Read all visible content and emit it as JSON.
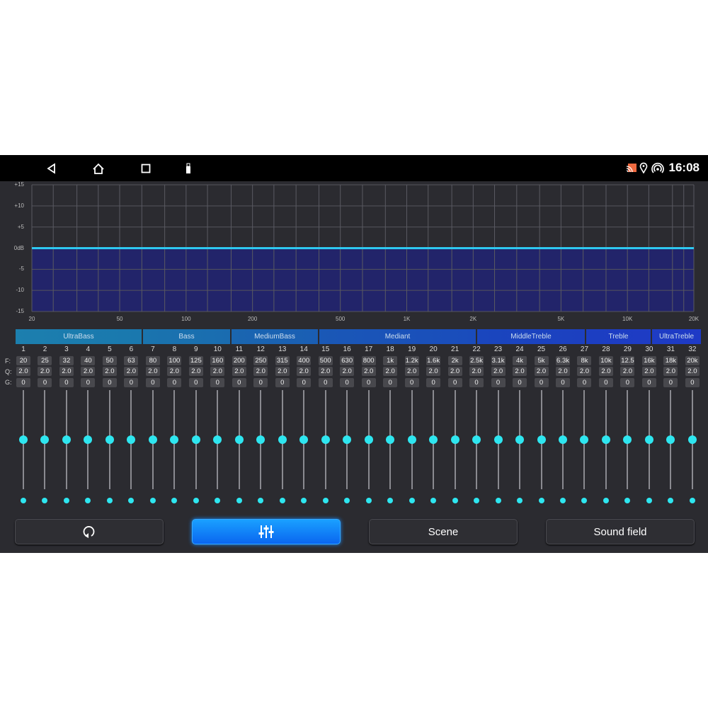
{
  "status_bar": {
    "time": "16:08",
    "icons": [
      "back-icon",
      "home-icon",
      "recents-icon",
      "usb-icon",
      "cast-icon",
      "location-icon",
      "hotspot-icon"
    ]
  },
  "graph": {
    "y_labels": [
      "+15",
      "+10",
      "+5",
      "0dB",
      "-5",
      "-10",
      "-15"
    ],
    "x_labels": [
      "20",
      "50",
      "100",
      "200",
      "500",
      "1K",
      "2K",
      "5K",
      "10K",
      "20K"
    ],
    "curve_gain_db": 0,
    "curve_color": "#2ec8f0",
    "fill_color": "#22246a"
  },
  "groups": [
    "UltraBass",
    "Bass",
    "MediumBass",
    "Mediant",
    "MiddleTreble",
    "Treble",
    "UltraTreble"
  ],
  "row_labels": {
    "f": "F:",
    "q": "Q:",
    "g": "G:"
  },
  "bands": [
    {
      "n": "1",
      "f": "20",
      "q": "2.0",
      "g": "0"
    },
    {
      "n": "2",
      "f": "25",
      "q": "2.0",
      "g": "0"
    },
    {
      "n": "3",
      "f": "32",
      "q": "2.0",
      "g": "0"
    },
    {
      "n": "4",
      "f": "40",
      "q": "2.0",
      "g": "0"
    },
    {
      "n": "5",
      "f": "50",
      "q": "2.0",
      "g": "0"
    },
    {
      "n": "6",
      "f": "63",
      "q": "2.0",
      "g": "0"
    },
    {
      "n": "7",
      "f": "80",
      "q": "2.0",
      "g": "0"
    },
    {
      "n": "8",
      "f": "100",
      "q": "2.0",
      "g": "0"
    },
    {
      "n": "9",
      "f": "125",
      "q": "2.0",
      "g": "0"
    },
    {
      "n": "10",
      "f": "160",
      "q": "2.0",
      "g": "0"
    },
    {
      "n": "11",
      "f": "200",
      "q": "2.0",
      "g": "0"
    },
    {
      "n": "12",
      "f": "250",
      "q": "2.0",
      "g": "0"
    },
    {
      "n": "13",
      "f": "315",
      "q": "2.0",
      "g": "0"
    },
    {
      "n": "14",
      "f": "400",
      "q": "2.0",
      "g": "0"
    },
    {
      "n": "15",
      "f": "500",
      "q": "2.0",
      "g": "0"
    },
    {
      "n": "16",
      "f": "630",
      "q": "2.0",
      "g": "0"
    },
    {
      "n": "17",
      "f": "800",
      "q": "2.0",
      "g": "0"
    },
    {
      "n": "18",
      "f": "1k",
      "q": "2.0",
      "g": "0"
    },
    {
      "n": "19",
      "f": "1.2k",
      "q": "2.0",
      "g": "0"
    },
    {
      "n": "20",
      "f": "1.6k",
      "q": "2.0",
      "g": "0"
    },
    {
      "n": "21",
      "f": "2k",
      "q": "2.0",
      "g": "0"
    },
    {
      "n": "22",
      "f": "2.5k",
      "q": "2.0",
      "g": "0"
    },
    {
      "n": "23",
      "f": "3.1k",
      "q": "2.0",
      "g": "0"
    },
    {
      "n": "24",
      "f": "4k",
      "q": "2.0",
      "g": "0"
    },
    {
      "n": "25",
      "f": "5k",
      "q": "2.0",
      "g": "0"
    },
    {
      "n": "26",
      "f": "6.3k",
      "q": "2.0",
      "g": "0"
    },
    {
      "n": "27",
      "f": "8k",
      "q": "2.0",
      "g": "0"
    },
    {
      "n": "28",
      "f": "10k",
      "q": "2.0",
      "g": "0"
    },
    {
      "n": "29",
      "f": "12.5",
      "q": "2.0",
      "g": "0"
    },
    {
      "n": "30",
      "f": "16k",
      "q": "2.0",
      "g": "0"
    },
    {
      "n": "31",
      "f": "18k",
      "q": "2.0",
      "g": "0"
    },
    {
      "n": "32",
      "f": "20k",
      "q": "2.0",
      "g": "0"
    }
  ],
  "buttons": {
    "reset_icon": "reset-icon",
    "eq_icon": "equalizer-icon",
    "scene": "Scene",
    "sound_field": "Sound field"
  }
}
